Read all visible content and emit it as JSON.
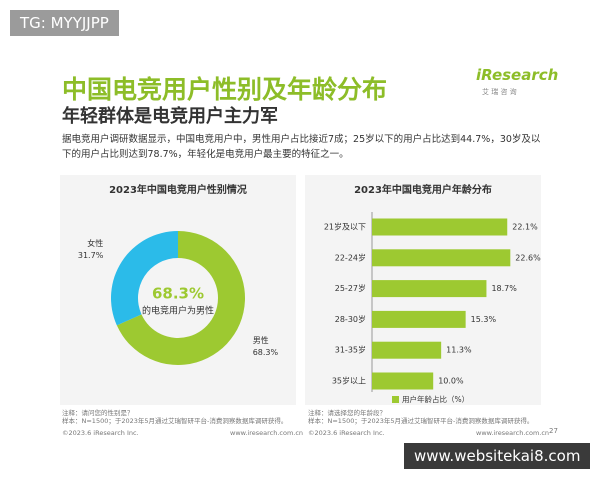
{
  "watermark_top": "TG: MYYJJPP",
  "watermark_bottom": "www.websitekai8.com",
  "header": {
    "title": "中国电竞用户性别及年龄分布",
    "subtitle": "年轻群体是电竞用户主力军",
    "logo": "iResearch",
    "logo_sub": "艾 瑞 咨 询",
    "text": "据电竞用户调研数据显示，中国电竞用户中，男性用户占比接近7成；25岁以下的用户占比达到44.7%，30岁及以下的用户占比则达到78.7%，年轻化是电竞用户最主要的特征之一。"
  },
  "chart_data": [
    {
      "type": "pie",
      "title": "2023年中国电竞用户性别情况",
      "categories": [
        "男性",
        "女性"
      ],
      "values": [
        68.3,
        31.7
      ],
      "value_labels": [
        "68.3%",
        "31.7%"
      ],
      "colors": [
        "#9dc931",
        "#2bbbe9"
      ],
      "annotation": "的电竞用户为男性"
    },
    {
      "type": "hbar",
      "title": "2023年中国电竞用户年龄分布",
      "categories": [
        "21岁及以下",
        "22-24岁",
        "25-27岁",
        "28-30岁",
        "31-35岁",
        "35岁以上"
      ],
      "values": [
        22.1,
        22.6,
        18.7,
        15.3,
        11.3,
        10.0
      ],
      "value_labels": [
        "22.1%",
        "22.6%",
        "18.7%",
        "15.3%",
        "11.3%",
        "10.0%"
      ],
      "series_name": "用户年龄占比（%）",
      "color": "#9dc931",
      "xlim": [
        0,
        25
      ]
    }
  ],
  "footer": {
    "left_note": "注释：请问您的性别是？",
    "left_sample": "样本：N=1500；于2023年5月通过艾瑞智研平台-消费洞察数据库调研获得。",
    "right_note": "注释：请选择您的年龄段？",
    "right_sample": "样本：N=1500；于2023年5月通过艾瑞智研平台-消费洞察数据库调研获得。",
    "copyright_left": "©2023.6 iResearch Inc.",
    "site_left": "www.iresearch.com.cn",
    "copyright_right": "©2023.6 iResearch Inc.",
    "site_right": "www.iresearch.com.cn",
    "page": "27"
  }
}
